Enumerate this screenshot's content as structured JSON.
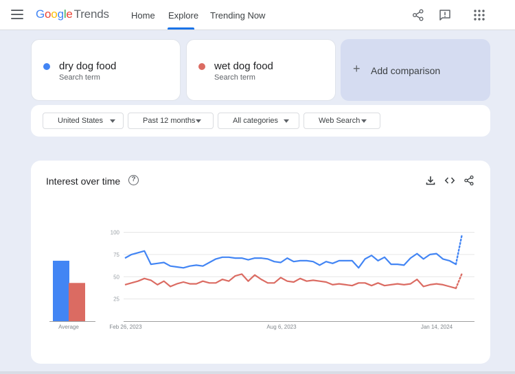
{
  "header": {
    "logo_google": [
      "G",
      "o",
      "o",
      "g",
      "l",
      "e"
    ],
    "logo_trends": "Trends",
    "nav": {
      "home": "Home",
      "explore": "Explore",
      "trending": "Trending Now"
    },
    "icons": [
      "menu-icon",
      "share-icon",
      "feedback-icon",
      "apps-grid-icon"
    ]
  },
  "search_terms": [
    {
      "name": "dry dog food",
      "subtitle": "Search term",
      "color": "#4285f4"
    },
    {
      "name": "wet dog food",
      "subtitle": "Search term",
      "color": "#db6b62"
    }
  ],
  "add_comparison": {
    "icon": "+",
    "label": "Add comparison"
  },
  "filters": {
    "region": "United States",
    "time": "Past 12 months",
    "category": "All categories",
    "search_type": "Web Search"
  },
  "interest": {
    "title": "Interest over time",
    "help_icon": "?",
    "icons": [
      "download-icon",
      "embed-icon",
      "share-icon"
    ]
  },
  "chart_data": {
    "type": "line",
    "yticks": [
      100,
      75,
      50,
      25
    ],
    "ylim": [
      0,
      100
    ],
    "average_label": "Average",
    "x_ticks": [
      "Feb 26, 2023",
      "Aug 6, 2023",
      "Jan 14, 2024"
    ],
    "averages": [
      68,
      43
    ],
    "series": [
      {
        "name": "dry dog food",
        "color": "#4285f4",
        "values": [
          71,
          75,
          77,
          79,
          64,
          65,
          66,
          62,
          61,
          60,
          62,
          63,
          62,
          66,
          70,
          72,
          72,
          71,
          71,
          69,
          71,
          71,
          70,
          67,
          66,
          71,
          67,
          68,
          68,
          67,
          63,
          67,
          65,
          68,
          68,
          68,
          60,
          70,
          74,
          68,
          72,
          64,
          64,
          63,
          71,
          76,
          70,
          75,
          76,
          70,
          68,
          64
        ],
        "partial": [
          64,
          98
        ]
      },
      {
        "name": "wet dog food",
        "color": "#db6b62",
        "values": [
          41,
          43,
          45,
          48,
          46,
          41,
          45,
          39,
          42,
          44,
          42,
          42,
          45,
          43,
          43,
          47,
          45,
          51,
          53,
          45,
          52,
          47,
          43,
          43,
          49,
          45,
          44,
          48,
          45,
          46,
          45,
          44,
          41,
          42,
          41,
          40,
          43,
          43,
          40,
          43,
          40,
          41,
          42,
          41,
          42,
          47,
          39,
          41,
          42,
          41,
          39,
          37
        ],
        "partial": [
          37,
          54
        ]
      }
    ]
  }
}
